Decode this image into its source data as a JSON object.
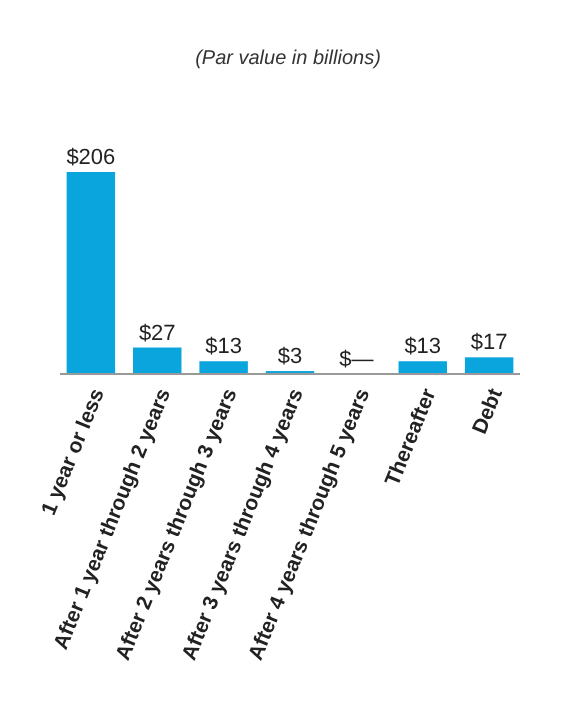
{
  "chart_data": {
    "type": "bar",
    "subtitle": "(Par value in billions)",
    "categories": [
      "1 year or less",
      "After 1 year through 2 years",
      "After 2 years through 3 years",
      "After 3 years through 4 years",
      "After 4 years through 5 years",
      "Thereafter",
      "Debt"
    ],
    "values": [
      206,
      27,
      13,
      3,
      0,
      13,
      17
    ],
    "value_labels": [
      "$206",
      "$27",
      "$13",
      "$3",
      "$—",
      "$13",
      "$17"
    ],
    "color": "#0aa5dc"
  }
}
